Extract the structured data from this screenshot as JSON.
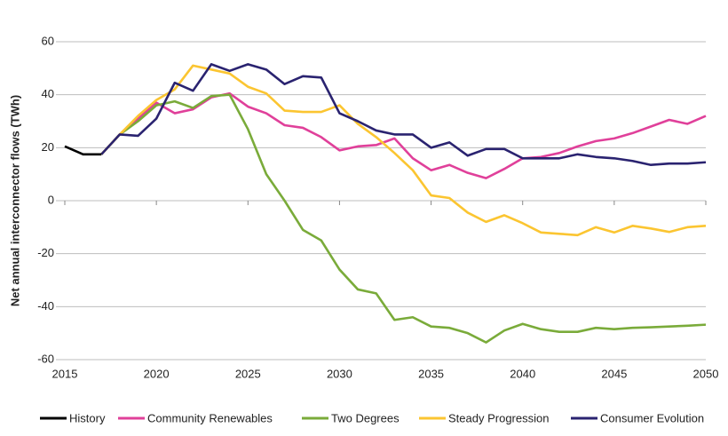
{
  "chart_data": {
    "type": "line",
    "y_label": "Net annual interconnector flows (TWh)",
    "x": [
      2015,
      2016,
      2017,
      2018,
      2019,
      2020,
      2021,
      2022,
      2023,
      2024,
      2025,
      2026,
      2027,
      2028,
      2029,
      2030,
      2031,
      2032,
      2033,
      2034,
      2035,
      2036,
      2037,
      2038,
      2039,
      2040,
      2041,
      2042,
      2043,
      2044,
      2045,
      2046,
      2047,
      2048,
      2049,
      2050
    ],
    "xlim": [
      2015,
      2050
    ],
    "xticks": [
      2015,
      2020,
      2025,
      2030,
      2035,
      2040,
      2045,
      2050
    ],
    "ylim": [
      -60,
      60
    ],
    "yticks": [
      -60,
      -40,
      -20,
      0,
      20,
      40,
      60
    ],
    "grid": true,
    "legend": "bottom",
    "series": [
      {
        "name": "History",
        "color": "#000000",
        "values": [
          20.5,
          17.5,
          17.5,
          null,
          null,
          null,
          null,
          null,
          null,
          null,
          null,
          null,
          null,
          null,
          null,
          null,
          null,
          null,
          null,
          null,
          null,
          null,
          null,
          null,
          null,
          null,
          null,
          null,
          null,
          null,
          null,
          null,
          null,
          null,
          null,
          null
        ]
      },
      {
        "name": "Community Renewables",
        "color": "#e0409a",
        "values": [
          null,
          null,
          17.5,
          25,
          31,
          37,
          33,
          34.5,
          39,
          40.5,
          35.5,
          33,
          28.5,
          27.5,
          24,
          19,
          20.5,
          21,
          23.5,
          16,
          11.5,
          13.5,
          10.5,
          8.5,
          12,
          16,
          16.5,
          18,
          20.5,
          22.5,
          23.5,
          25.5,
          28,
          30.5,
          29,
          32
        ]
      },
      {
        "name": "Two Degrees",
        "color": "#7aab3a",
        "values": [
          null,
          null,
          17.5,
          25,
          30,
          36,
          37.5,
          35,
          39.5,
          40,
          27,
          10,
          0,
          -11,
          -15,
          -26,
          -33.5,
          -35,
          -45,
          -44,
          -47.5,
          -48,
          -50,
          -53.5,
          -49,
          -46.5,
          -48.5,
          -49.5,
          -49.5,
          -48,
          -48.5,
          -48,
          -47.8,
          -47.5,
          -47.2,
          -46.8
        ]
      },
      {
        "name": "Steady Progression",
        "color": "#fbc531",
        "values": [
          null,
          null,
          17.5,
          25,
          32,
          38,
          42,
          51,
          49.5,
          48,
          43,
          40.5,
          34,
          33.5,
          33.5,
          36,
          29,
          24,
          18,
          11.5,
          2,
          1,
          -4.5,
          -8,
          -5.5,
          -8.5,
          -12,
          -12.5,
          -13,
          -10,
          -12,
          -9.5,
          -10.5,
          -11.8,
          -10,
          -9.5
        ]
      },
      {
        "name": "Consumer Evolution",
        "color": "#2a2370",
        "values": [
          null,
          null,
          17.5,
          25,
          24.5,
          31,
          44.5,
          41.5,
          51.5,
          49,
          51.5,
          49.5,
          44,
          47,
          46.5,
          33,
          30,
          26.5,
          25,
          25,
          20,
          22,
          17,
          19.5,
          19.5,
          16,
          16,
          16,
          17.5,
          16.5,
          16,
          15,
          13.5,
          14,
          14,
          14.5
        ]
      }
    ]
  }
}
